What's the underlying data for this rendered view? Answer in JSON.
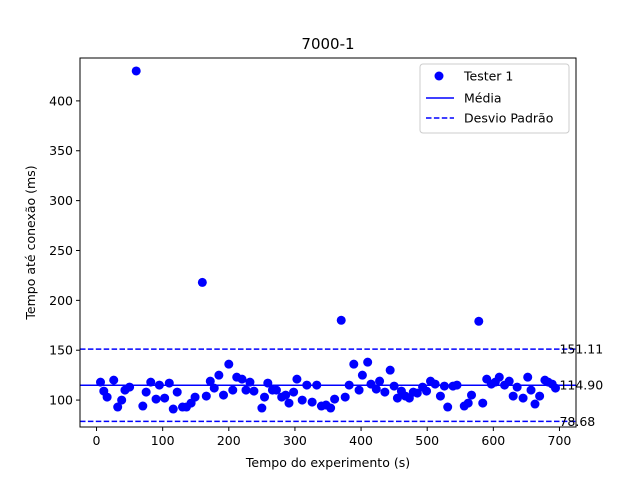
{
  "chart_data": {
    "type": "scatter",
    "title": "7000-1",
    "xlabel": "Tempo do experimento (s)",
    "ylabel": "Tempo até conexão (ms)",
    "xlim": [
      -25,
      725
    ],
    "ylim": [
      73,
      443
    ],
    "xticks": [
      0,
      100,
      200,
      300,
      400,
      500,
      600,
      700
    ],
    "yticks": [
      100,
      150,
      200,
      250,
      300,
      350,
      400
    ],
    "grid": false,
    "legend_position": "top-right",
    "series": [
      {
        "name": "Tester 1",
        "color": "#0000ff",
        "points": [
          [
            6,
            118
          ],
          [
            11,
            109
          ],
          [
            16,
            103
          ],
          [
            26,
            120
          ],
          [
            32,
            93
          ],
          [
            38,
            100
          ],
          [
            43,
            110
          ],
          [
            50,
            113
          ],
          [
            60,
            430
          ],
          [
            70,
            94
          ],
          [
            75,
            108
          ],
          [
            82,
            118
          ],
          [
            90,
            101
          ],
          [
            95,
            115
          ],
          [
            103,
            102
          ],
          [
            110,
            117
          ],
          [
            116,
            91
          ],
          [
            122,
            108
          ],
          [
            130,
            93
          ],
          [
            136,
            93
          ],
          [
            143,
            97
          ],
          [
            149,
            103
          ],
          [
            160,
            218
          ],
          [
            166,
            104
          ],
          [
            172,
            119
          ],
          [
            178,
            112
          ],
          [
            185,
            125
          ],
          [
            192,
            105
          ],
          [
            200,
            136
          ],
          [
            206,
            110
          ],
          [
            212,
            123
          ],
          [
            220,
            121
          ],
          [
            226,
            110
          ],
          [
            232,
            118
          ],
          [
            238,
            109
          ],
          [
            250,
            92
          ],
          [
            254,
            103
          ],
          [
            259,
            117
          ],
          [
            266,
            110
          ],
          [
            272,
            110
          ],
          [
            280,
            103
          ],
          [
            286,
            105
          ],
          [
            291,
            97
          ],
          [
            298,
            108
          ],
          [
            303,
            121
          ],
          [
            311,
            100
          ],
          [
            318,
            115
          ],
          [
            326,
            98
          ],
          [
            333,
            115
          ],
          [
            340,
            94
          ],
          [
            347,
            95
          ],
          [
            354,
            92
          ],
          [
            360,
            101
          ],
          [
            370,
            180
          ],
          [
            376,
            103
          ],
          [
            382,
            115
          ],
          [
            389,
            136
          ],
          [
            397,
            110
          ],
          [
            402,
            125
          ],
          [
            410,
            138
          ],
          [
            415,
            116
          ],
          [
            423,
            111
          ],
          [
            428,
            119
          ],
          [
            436,
            108
          ],
          [
            444,
            130
          ],
          [
            450,
            114
          ],
          [
            455,
            102
          ],
          [
            461,
            109
          ],
          [
            467,
            104
          ],
          [
            473,
            102
          ],
          [
            479,
            108
          ],
          [
            485,
            107
          ],
          [
            493,
            113
          ],
          [
            499,
            109
          ],
          [
            505,
            119
          ],
          [
            512,
            116
          ],
          [
            520,
            104
          ],
          [
            526,
            114
          ],
          [
            531,
            93
          ],
          [
            539,
            114
          ],
          [
            545,
            115
          ],
          [
            556,
            94
          ],
          [
            562,
            97
          ],
          [
            567,
            105
          ],
          [
            578,
            179
          ],
          [
            584,
            97
          ],
          [
            590,
            121
          ],
          [
            597,
            116
          ],
          [
            603,
            118
          ],
          [
            609,
            123
          ],
          [
            617,
            115
          ],
          [
            624,
            119
          ],
          [
            630,
            104
          ],
          [
            636,
            113
          ],
          [
            645,
            102
          ],
          [
            652,
            123
          ],
          [
            657,
            110
          ],
          [
            663,
            96
          ],
          [
            670,
            104
          ],
          [
            678,
            120
          ],
          [
            683,
            118
          ],
          [
            689,
            116
          ],
          [
            694,
            112
          ]
        ]
      }
    ],
    "reference_lines": [
      {
        "name": "Média",
        "value": 114.9,
        "label": "114.90",
        "style": "solid",
        "color": "#0000ff"
      },
      {
        "name": "Desvio Padrão",
        "value": 151.11,
        "label": "151.11",
        "style": "dashed",
        "color": "#0000ff"
      },
      {
        "name": "Desvio Padrão",
        "value": 78.68,
        "label": "78.68",
        "style": "dashed",
        "color": "#0000ff"
      }
    ],
    "legend": [
      {
        "label": "Tester 1",
        "marker": "dot"
      },
      {
        "label": "Média",
        "marker": "solid-line"
      },
      {
        "label": "Desvio Padrão",
        "marker": "dashed-line"
      }
    ]
  }
}
